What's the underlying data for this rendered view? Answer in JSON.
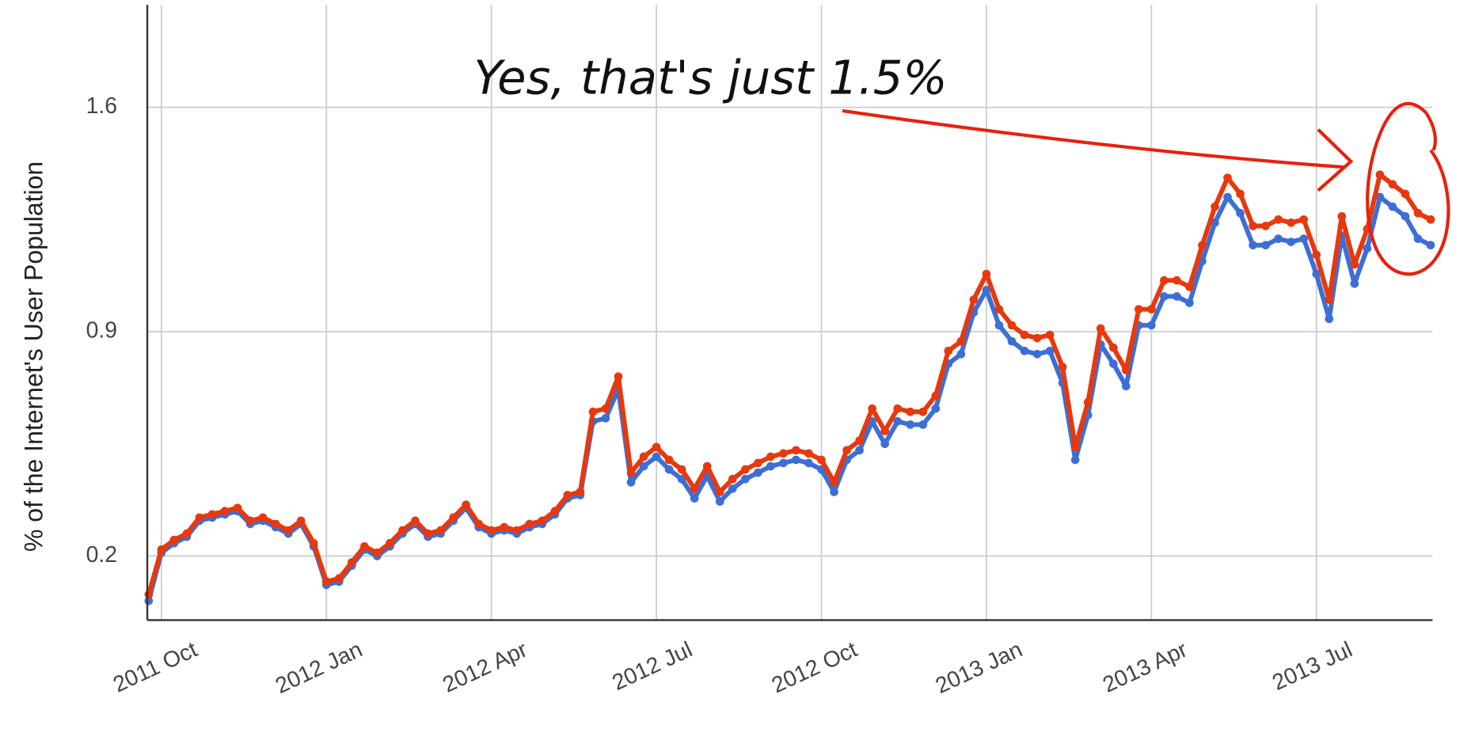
{
  "chart_data": {
    "type": "line",
    "annotation": "Yes, that's just 1.5%",
    "y_label": "% of the Internet's User Population",
    "categories": [
      null,
      "2011 Oct",
      null,
      null,
      null,
      null,
      null,
      null,
      null,
      null,
      null,
      null,
      null,
      null,
      "2012 Jan",
      null,
      null,
      null,
      null,
      null,
      null,
      null,
      null,
      null,
      null,
      null,
      null,
      "2012 Apr",
      null,
      null,
      null,
      null,
      null,
      null,
      null,
      null,
      null,
      null,
      null,
      null,
      "2012 Jul",
      null,
      null,
      null,
      null,
      null,
      null,
      null,
      null,
      null,
      null,
      null,
      null,
      "2012 Oct",
      null,
      null,
      null,
      null,
      null,
      null,
      null,
      null,
      null,
      null,
      null,
      null,
      "2013 Jan",
      null,
      null,
      null,
      null,
      null,
      null,
      null,
      null,
      null,
      null,
      null,
      null,
      "2013 Apr",
      null,
      null,
      null,
      null,
      null,
      null,
      null,
      null,
      null,
      null,
      null,
      null,
      "2013 Jul",
      null,
      null,
      null,
      null,
      null,
      null,
      null,
      null,
      null
    ],
    "series": [
      {
        "color": "#3c6fd6",
        "values": [
          0.06,
          0.21,
          0.24,
          0.26,
          0.31,
          0.32,
          0.33,
          0.34,
          0.3,
          0.31,
          0.29,
          0.27,
          0.3,
          0.23,
          0.11,
          0.12,
          0.17,
          0.22,
          0.2,
          0.23,
          0.27,
          0.3,
          0.26,
          0.27,
          0.31,
          0.35,
          0.29,
          0.27,
          0.28,
          0.27,
          0.29,
          0.3,
          0.33,
          0.38,
          0.39,
          0.62,
          0.63,
          0.72,
          0.43,
          0.48,
          0.51,
          0.47,
          0.44,
          0.38,
          0.45,
          0.37,
          0.41,
          0.44,
          0.46,
          0.48,
          0.49,
          0.5,
          0.49,
          0.47,
          0.4,
          0.5,
          0.53,
          0.62,
          0.55,
          0.62,
          0.61,
          0.61,
          0.66,
          0.8,
          0.83,
          0.96,
          1.03,
          0.92,
          0.87,
          0.84,
          0.83,
          0.84,
          0.74,
          0.5,
          0.64,
          0.86,
          0.8,
          0.73,
          0.92,
          0.92,
          1.01,
          1.01,
          0.99,
          1.12,
          1.24,
          1.32,
          1.27,
          1.17,
          1.17,
          1.19,
          1.18,
          1.19,
          1.08,
          0.94,
          1.2,
          1.05,
          1.16,
          1.32,
          1.29,
          1.26,
          1.19,
          1.17
        ]
      },
      {
        "color": "#e8380d",
        "values": [
          0.08,
          0.22,
          0.25,
          0.27,
          0.32,
          0.33,
          0.34,
          0.35,
          0.31,
          0.32,
          0.3,
          0.28,
          0.31,
          0.24,
          0.12,
          0.13,
          0.18,
          0.23,
          0.21,
          0.24,
          0.28,
          0.31,
          0.27,
          0.28,
          0.32,
          0.36,
          0.3,
          0.28,
          0.29,
          0.28,
          0.3,
          0.31,
          0.34,
          0.39,
          0.4,
          0.65,
          0.66,
          0.76,
          0.46,
          0.51,
          0.54,
          0.5,
          0.47,
          0.41,
          0.48,
          0.4,
          0.44,
          0.47,
          0.49,
          0.51,
          0.52,
          0.53,
          0.52,
          0.5,
          0.43,
          0.53,
          0.56,
          0.66,
          0.59,
          0.66,
          0.65,
          0.65,
          0.7,
          0.84,
          0.87,
          1.0,
          1.08,
          0.97,
          0.92,
          0.89,
          0.88,
          0.89,
          0.79,
          0.54,
          0.68,
          0.91,
          0.85,
          0.78,
          0.97,
          0.97,
          1.06,
          1.06,
          1.04,
          1.17,
          1.29,
          1.38,
          1.33,
          1.23,
          1.23,
          1.25,
          1.24,
          1.25,
          1.14,
          1.0,
          1.26,
          1.11,
          1.22,
          1.39,
          1.36,
          1.33,
          1.27,
          1.25
        ]
      }
    ],
    "ylim": [
      0,
      1.92
    ],
    "yticks": [
      0.2,
      0.9,
      1.6
    ],
    "grid": true
  }
}
